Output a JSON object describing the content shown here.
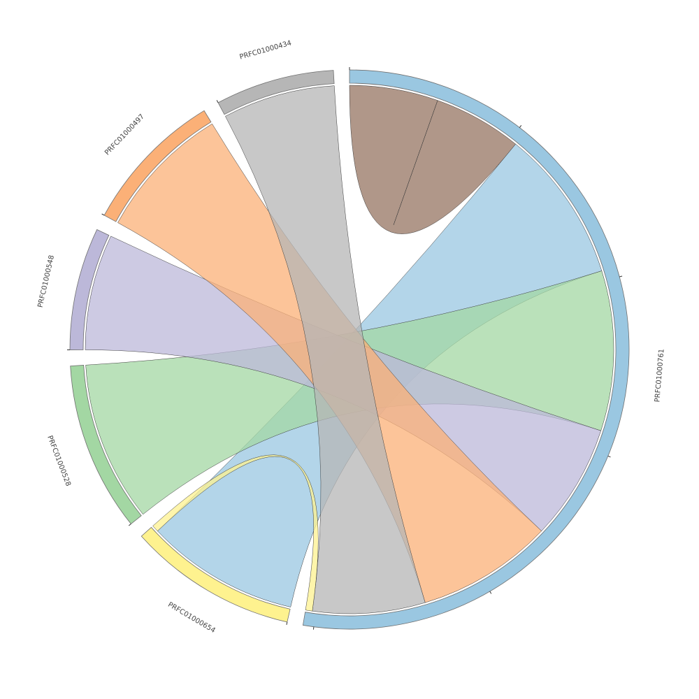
{
  "chart_data": {
    "type": "chord",
    "sectors": [
      {
        "id": "PRFC01000761",
        "label": "PRFC01000761",
        "color": "#9ac7e1"
      },
      {
        "id": "PRFC01000654",
        "label": "PRFC01000654",
        "color": "#fef28f"
      },
      {
        "id": "PRFC01000528",
        "label": "PRFC01000528",
        "color": "#a3d7a3"
      },
      {
        "id": "PRFC01000548",
        "label": "PRFC01000548",
        "color": "#bcb8d9"
      },
      {
        "id": "PRFC01000497",
        "label": "PRFC01000497",
        "color": "#fbb077"
      },
      {
        "id": "PRFC01000434",
        "label": "PRFC01000434",
        "color": "#b6b6b6"
      }
    ],
    "links": [
      {
        "source": "PRFC01000761",
        "target": "PRFC01000761",
        "value": 2.6,
        "color": "#a98e7f"
      },
      {
        "source": "PRFC01000761",
        "target": "PRFC01000654",
        "value": 4.5,
        "color": "#9ac7e1"
      },
      {
        "source": "PRFC01000761",
        "target": "PRFC01000528",
        "value": 4.7,
        "color": "#a3d7a3"
      },
      {
        "source": "PRFC01000761",
        "target": "PRFC01000548",
        "value": 3.4,
        "color": "#bcb8d9"
      },
      {
        "source": "PRFC01000761",
        "target": "PRFC01000497",
        "value": 4.0,
        "color": "#fbb077"
      },
      {
        "source": "PRFC01000761",
        "target": "PRFC01000434",
        "value": 3.3,
        "color": "#b6b6b6"
      },
      {
        "source": "PRFC01000654",
        "target": "PRFC01000761",
        "value": 0.2,
        "color": "#fef28f"
      }
    ]
  }
}
